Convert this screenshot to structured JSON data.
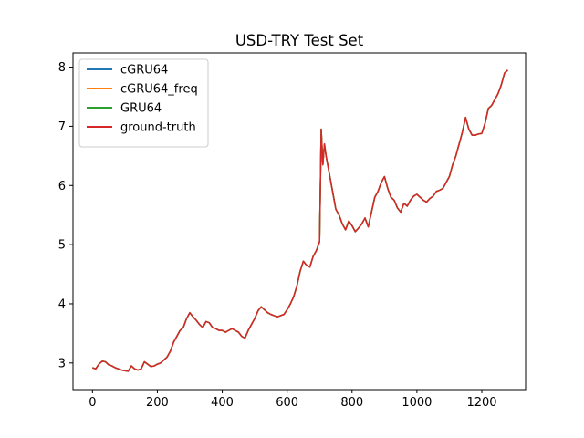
{
  "chart_data": {
    "type": "line",
    "title": "USD-TRY Test Set",
    "xlabel": "",
    "ylabel": "",
    "xlim": [
      -60,
      1335
    ],
    "ylim": [
      2.55,
      8.24
    ],
    "xticks": [
      0,
      200,
      400,
      600,
      800,
      1000,
      1200
    ],
    "yticks": [
      3,
      4,
      5,
      6,
      7,
      8
    ],
    "grid": false,
    "legend": {
      "placement": "top-left"
    },
    "x": [
      0,
      10,
      20,
      30,
      40,
      50,
      60,
      70,
      80,
      90,
      100,
      110,
      120,
      130,
      140,
      150,
      160,
      170,
      180,
      190,
      200,
      210,
      220,
      230,
      240,
      250,
      260,
      270,
      280,
      290,
      300,
      310,
      320,
      330,
      340,
      350,
      360,
      370,
      380,
      390,
      400,
      410,
      420,
      430,
      440,
      450,
      460,
      470,
      480,
      490,
      500,
      510,
      520,
      530,
      540,
      550,
      560,
      570,
      580,
      590,
      600,
      610,
      620,
      630,
      640,
      650,
      660,
      670,
      680,
      690,
      700,
      705,
      710,
      715,
      720,
      730,
      740,
      750,
      760,
      770,
      780,
      790,
      800,
      810,
      820,
      830,
      840,
      850,
      860,
      870,
      880,
      890,
      900,
      910,
      920,
      930,
      940,
      950,
      960,
      970,
      980,
      990,
      1000,
      1010,
      1020,
      1030,
      1040,
      1050,
      1060,
      1070,
      1080,
      1090,
      1100,
      1110,
      1120,
      1130,
      1140,
      1150,
      1160,
      1170,
      1180,
      1190,
      1200,
      1210,
      1220,
      1230,
      1240,
      1250,
      1260,
      1270,
      1280
    ],
    "series": [
      {
        "name": "cGRU64",
        "color": "#1f77b4",
        "values": [
          2.92,
          2.9,
          2.98,
          3.03,
          3.02,
          2.97,
          2.95,
          2.92,
          2.9,
          2.88,
          2.87,
          2.86,
          2.95,
          2.9,
          2.88,
          2.9,
          3.02,
          2.98,
          2.94,
          2.95,
          2.98,
          3.0,
          3.05,
          3.1,
          3.2,
          3.35,
          3.45,
          3.55,
          3.6,
          3.75,
          3.85,
          3.78,
          3.72,
          3.65,
          3.6,
          3.7,
          3.68,
          3.6,
          3.58,
          3.55,
          3.55,
          3.52,
          3.55,
          3.58,
          3.55,
          3.52,
          3.45,
          3.42,
          3.55,
          3.65,
          3.75,
          3.88,
          3.95,
          3.9,
          3.85,
          3.82,
          3.8,
          3.78,
          3.8,
          3.82,
          3.9,
          4.0,
          4.12,
          4.3,
          4.55,
          4.72,
          4.65,
          4.62,
          4.8,
          4.9,
          5.05,
          6.95,
          6.35,
          6.7,
          6.5,
          6.2,
          5.9,
          5.6,
          5.5,
          5.35,
          5.25,
          5.4,
          5.32,
          5.22,
          5.28,
          5.35,
          5.45,
          5.3,
          5.55,
          5.8,
          5.9,
          6.05,
          6.15,
          5.95,
          5.8,
          5.75,
          5.62,
          5.55,
          5.7,
          5.65,
          5.75,
          5.82,
          5.85,
          5.8,
          5.75,
          5.72,
          5.78,
          5.82,
          5.9,
          5.92,
          5.95,
          6.05,
          6.15,
          6.35,
          6.5,
          6.7,
          6.9,
          7.15,
          6.95,
          6.85,
          6.85,
          6.87,
          6.88,
          7.05,
          7.3,
          7.35,
          7.45,
          7.55,
          7.7,
          7.9,
          7.95
        ]
      },
      {
        "name": "cGRU64_freq",
        "color": "#ff7f0e",
        "values": [
          2.92,
          2.9,
          2.98,
          3.03,
          3.02,
          2.97,
          2.95,
          2.92,
          2.9,
          2.88,
          2.87,
          2.86,
          2.95,
          2.9,
          2.88,
          2.9,
          3.02,
          2.98,
          2.94,
          2.95,
          2.98,
          3.0,
          3.05,
          3.1,
          3.2,
          3.35,
          3.45,
          3.55,
          3.6,
          3.75,
          3.85,
          3.78,
          3.72,
          3.65,
          3.6,
          3.7,
          3.68,
          3.6,
          3.58,
          3.55,
          3.55,
          3.52,
          3.55,
          3.58,
          3.55,
          3.52,
          3.45,
          3.42,
          3.55,
          3.65,
          3.75,
          3.88,
          3.95,
          3.9,
          3.85,
          3.82,
          3.8,
          3.78,
          3.8,
          3.82,
          3.9,
          4.0,
          4.12,
          4.3,
          4.55,
          4.72,
          4.65,
          4.62,
          4.8,
          4.9,
          5.05,
          6.95,
          6.35,
          6.7,
          6.5,
          6.2,
          5.9,
          5.6,
          5.5,
          5.35,
          5.25,
          5.4,
          5.32,
          5.22,
          5.28,
          5.35,
          5.45,
          5.3,
          5.55,
          5.8,
          5.9,
          6.05,
          6.15,
          5.95,
          5.8,
          5.75,
          5.62,
          5.55,
          5.7,
          5.65,
          5.75,
          5.82,
          5.85,
          5.8,
          5.75,
          5.72,
          5.78,
          5.82,
          5.9,
          5.92,
          5.95,
          6.05,
          6.15,
          6.35,
          6.5,
          6.7,
          6.9,
          7.15,
          6.95,
          6.85,
          6.85,
          6.87,
          6.88,
          7.05,
          7.3,
          7.35,
          7.45,
          7.55,
          7.7,
          7.9,
          7.95
        ]
      },
      {
        "name": "GRU64",
        "color": "#2ca02c",
        "values": [
          2.92,
          2.9,
          2.98,
          3.03,
          3.02,
          2.97,
          2.95,
          2.92,
          2.9,
          2.88,
          2.87,
          2.86,
          2.95,
          2.9,
          2.88,
          2.9,
          3.02,
          2.98,
          2.94,
          2.95,
          2.98,
          3.0,
          3.05,
          3.1,
          3.2,
          3.35,
          3.45,
          3.55,
          3.6,
          3.75,
          3.85,
          3.78,
          3.72,
          3.65,
          3.6,
          3.7,
          3.68,
          3.6,
          3.58,
          3.55,
          3.55,
          3.52,
          3.55,
          3.58,
          3.55,
          3.52,
          3.45,
          3.42,
          3.55,
          3.65,
          3.75,
          3.88,
          3.95,
          3.9,
          3.85,
          3.82,
          3.8,
          3.78,
          3.8,
          3.82,
          3.9,
          4.0,
          4.12,
          4.3,
          4.55,
          4.72,
          4.65,
          4.62,
          4.8,
          4.9,
          5.05,
          6.95,
          6.35,
          6.7,
          6.5,
          6.2,
          5.9,
          5.6,
          5.5,
          5.35,
          5.25,
          5.4,
          5.32,
          5.22,
          5.28,
          5.35,
          5.45,
          5.3,
          5.55,
          5.8,
          5.9,
          6.05,
          6.15,
          5.95,
          5.8,
          5.75,
          5.62,
          5.55,
          5.7,
          5.65,
          5.75,
          5.82,
          5.85,
          5.8,
          5.75,
          5.72,
          5.78,
          5.82,
          5.9,
          5.92,
          5.95,
          6.05,
          6.15,
          6.35,
          6.5,
          6.7,
          6.9,
          7.15,
          6.95,
          6.85,
          6.85,
          6.87,
          6.88,
          7.05,
          7.3,
          7.35,
          7.45,
          7.55,
          7.7,
          7.9,
          7.95
        ]
      },
      {
        "name": "ground-truth",
        "color": "#d62728",
        "values": [
          2.92,
          2.9,
          2.98,
          3.03,
          3.02,
          2.97,
          2.95,
          2.92,
          2.9,
          2.88,
          2.87,
          2.86,
          2.95,
          2.9,
          2.88,
          2.9,
          3.02,
          2.98,
          2.94,
          2.95,
          2.98,
          3.0,
          3.05,
          3.1,
          3.2,
          3.35,
          3.45,
          3.55,
          3.6,
          3.75,
          3.85,
          3.78,
          3.72,
          3.65,
          3.6,
          3.7,
          3.68,
          3.6,
          3.58,
          3.55,
          3.55,
          3.52,
          3.55,
          3.58,
          3.55,
          3.52,
          3.45,
          3.42,
          3.55,
          3.65,
          3.75,
          3.88,
          3.95,
          3.9,
          3.85,
          3.82,
          3.8,
          3.78,
          3.8,
          3.82,
          3.9,
          4.0,
          4.12,
          4.3,
          4.55,
          4.72,
          4.65,
          4.62,
          4.8,
          4.9,
          5.05,
          6.95,
          6.35,
          6.7,
          6.5,
          6.2,
          5.9,
          5.6,
          5.5,
          5.35,
          5.25,
          5.4,
          5.32,
          5.22,
          5.28,
          5.35,
          5.45,
          5.3,
          5.55,
          5.8,
          5.9,
          6.05,
          6.15,
          5.95,
          5.8,
          5.75,
          5.62,
          5.55,
          5.7,
          5.65,
          5.75,
          5.82,
          5.85,
          5.8,
          5.75,
          5.72,
          5.78,
          5.82,
          5.9,
          5.92,
          5.95,
          6.05,
          6.15,
          6.35,
          6.5,
          6.7,
          6.9,
          7.15,
          6.95,
          6.85,
          6.85,
          6.87,
          6.88,
          7.05,
          7.3,
          7.35,
          7.45,
          7.55,
          7.7,
          7.9,
          7.95
        ]
      }
    ]
  }
}
